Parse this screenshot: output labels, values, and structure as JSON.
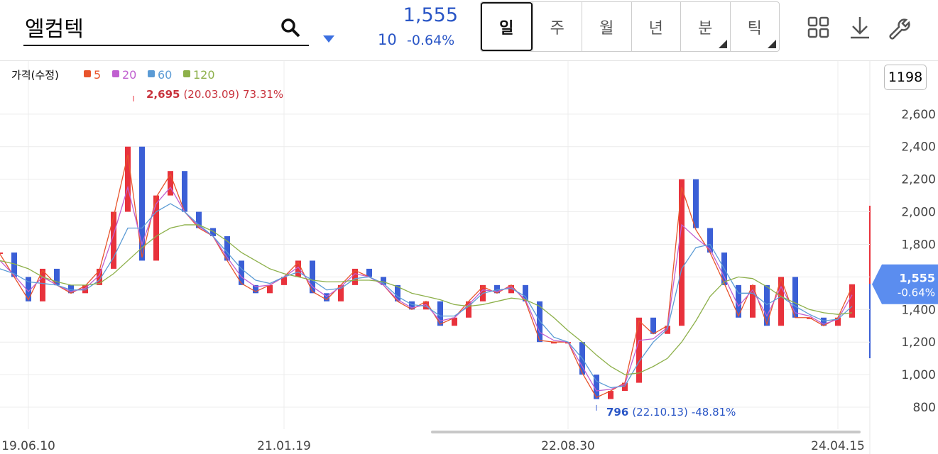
{
  "header": {
    "search": "엘컴텍",
    "price": "1,555",
    "change": "10",
    "change_pct": "-0.64%"
  },
  "tabs": [
    "일",
    "주",
    "월",
    "년",
    "분",
    "틱"
  ],
  "badge": "1198",
  "chart_data": {
    "type": "candlestick",
    "legend_label": "가격(수정)",
    "categories": [
      null,
      null,
      "19.06.10",
      null,
      null,
      null,
      null,
      null,
      null,
      null,
      null,
      null,
      null,
      null,
      null,
      null,
      null,
      null,
      null,
      null,
      "21.01.19",
      null,
      null,
      null,
      null,
      null,
      null,
      null,
      null,
      null,
      null,
      null,
      null,
      null,
      null,
      null,
      null,
      null,
      null,
      null,
      "22.08.30",
      null,
      null,
      null,
      null,
      null,
      null,
      null,
      null,
      null,
      null,
      null,
      null,
      null,
      null,
      null,
      null,
      null,
      null,
      "24.04.15",
      null
    ],
    "values": [
      1750,
      1600,
      1450,
      1650,
      1550,
      1500,
      1550,
      1650,
      2000,
      2400,
      1700,
      2100,
      2250,
      2000,
      1900,
      1850,
      1700,
      1550,
      1500,
      1550,
      1600,
      1700,
      1500,
      1450,
      1550,
      1650,
      1600,
      1550,
      1450,
      1400,
      1450,
      1300,
      1350,
      1450,
      1550,
      1500,
      1550,
      1450,
      1200,
      1200,
      1200,
      1000,
      850,
      900,
      950,
      1350,
      1250,
      1300,
      2200,
      1900,
      1750,
      1550,
      1350,
      1550,
      1300,
      1600,
      1350,
      1350,
      1300,
      1350,
      1555
    ],
    "up_color": "#e8323c",
    "down_color": "#3b5fd6",
    "series": [
      {
        "name": "5",
        "color": "#e8542c",
        "values": [
          1740,
          1600,
          1460,
          1640,
          1550,
          1500,
          1545,
          1640,
          1970,
          2350,
          1720,
          2090,
          2230,
          2000,
          1900,
          1850,
          1700,
          1560,
          1510,
          1550,
          1600,
          1690,
          1510,
          1460,
          1550,
          1640,
          1600,
          1550,
          1450,
          1400,
          1450,
          1310,
          1350,
          1450,
          1540,
          1500,
          1550,
          1450,
          1210,
          1200,
          1200,
          1010,
          860,
          900,
          950,
          1330,
          1250,
          1300,
          2150,
          1890,
          1750,
          1560,
          1360,
          1550,
          1310,
          1590,
          1350,
          1350,
          1300,
          1350,
          1540
        ]
      },
      {
        "name": "20",
        "color": "#c060d0",
        "values": [
          1700,
          1610,
          1510,
          1600,
          1550,
          1510,
          1530,
          1610,
          1860,
          2150,
          1800,
          2050,
          2150,
          2000,
          1910,
          1850,
          1720,
          1600,
          1540,
          1550,
          1600,
          1660,
          1540,
          1480,
          1540,
          1620,
          1600,
          1550,
          1460,
          1410,
          1430,
          1330,
          1350,
          1430,
          1520,
          1510,
          1540,
          1460,
          1260,
          1210,
          1200,
          1050,
          900,
          910,
          940,
          1210,
          1220,
          1290,
          1920,
          1840,
          1770,
          1600,
          1420,
          1520,
          1360,
          1540,
          1380,
          1360,
          1310,
          1340,
          1490
        ]
      },
      {
        "name": "60",
        "color": "#5b9bd5",
        "values": [
          1650,
          1620,
          1570,
          1560,
          1550,
          1520,
          1520,
          1580,
          1720,
          1900,
          1900,
          2000,
          2050,
          2000,
          1920,
          1850,
          1750,
          1650,
          1580,
          1560,
          1600,
          1630,
          1580,
          1520,
          1530,
          1590,
          1600,
          1560,
          1480,
          1430,
          1420,
          1360,
          1360,
          1420,
          1500,
          1520,
          1530,
          1480,
          1330,
          1230,
          1200,
          1100,
          960,
          920,
          930,
          1080,
          1200,
          1280,
          1650,
          1780,
          1800,
          1650,
          1500,
          1500,
          1430,
          1480,
          1420,
          1370,
          1330,
          1340,
          1420
        ]
      },
      {
        "name": "120",
        "color": "#8db04a",
        "values": [
          1700,
          1680,
          1650,
          1600,
          1570,
          1550,
          1550,
          1560,
          1620,
          1700,
          1780,
          1850,
          1900,
          1920,
          1920,
          1880,
          1820,
          1750,
          1700,
          1650,
          1620,
          1600,
          1580,
          1570,
          1570,
          1580,
          1580,
          1570,
          1540,
          1500,
          1480,
          1460,
          1430,
          1420,
          1430,
          1450,
          1470,
          1460,
          1420,
          1350,
          1270,
          1200,
          1120,
          1050,
          1000,
          1010,
          1050,
          1100,
          1200,
          1330,
          1480,
          1570,
          1600,
          1590,
          1540,
          1480,
          1440,
          1400,
          1380,
          1370,
          1380
        ]
      }
    ],
    "ylim": [
      665,
      2926
    ],
    "yticks": [
      800,
      {
        "value": 1000,
        "label": "1,000"
      },
      {
        "value": 1200,
        "label": "1,200"
      },
      {
        "value": 1400,
        "label": "1,400"
      },
      {
        "value": 1600,
        "label": "1,600"
      },
      {
        "value": 1800,
        "label": "1,800"
      },
      {
        "value": 2000,
        "label": "2,000"
      },
      {
        "value": 2200,
        "label": "2,200"
      },
      {
        "value": 2400,
        "label": "2,400"
      },
      {
        "value": 2600,
        "label": "2,600"
      }
    ],
    "high": {
      "value": 2695,
      "label": "2,695",
      "date": "(20.03.09)",
      "pct": "73.31%"
    },
    "low": {
      "value": 796,
      "date": "(22.10.13)",
      "pct": "-48.81%"
    },
    "price_tag": {
      "value": 1555,
      "label": "1,555",
      "change": "-0.64%"
    }
  }
}
